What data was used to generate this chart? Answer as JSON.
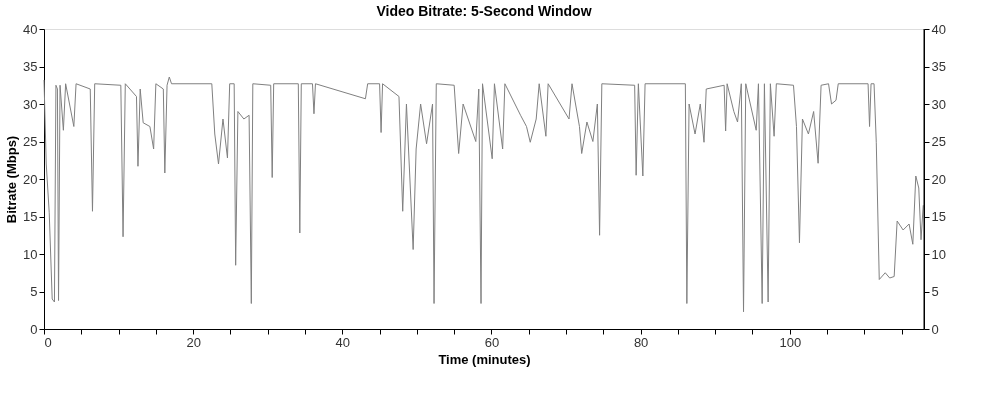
{
  "chart_data": {
    "type": "line",
    "title": "Video Bitrate: 5-Second Window",
    "xlabel": "Time (minutes)",
    "ylabel": "Bitrate (Mbps)",
    "xlim": [
      0,
      118
    ],
    "ylim": [
      0,
      40
    ],
    "y2lim": [
      0,
      40
    ],
    "xticks": [
      0,
      {
        "value": 5,
        "label": null
      },
      {
        "value": 10,
        "label": null
      },
      {
        "value": 15,
        "label": null
      },
      20,
      {
        "value": 25,
        "label": null
      },
      {
        "value": 30,
        "label": null
      },
      {
        "value": 35,
        "label": null
      },
      40,
      {
        "value": 45,
        "label": null
      },
      {
        "value": 50,
        "label": null
      },
      {
        "value": 55,
        "label": null
      },
      60,
      {
        "value": 65,
        "label": null
      },
      {
        "value": 70,
        "label": null
      },
      {
        "value": 75,
        "label": null
      },
      80,
      {
        "value": 85,
        "label": null
      },
      {
        "value": 90,
        "label": null
      },
      {
        "value": 95,
        "label": null
      },
      100,
      {
        "value": 105,
        "label": null
      },
      {
        "value": 110,
        "label": null
      },
      {
        "value": 115,
        "label": null
      }
    ],
    "yticks": [
      0,
      5,
      10,
      15,
      20,
      25,
      30,
      35,
      40
    ],
    "y2ticks": [
      0,
      5,
      10,
      15,
      20,
      25,
      30,
      35,
      40
    ],
    "grid": false,
    "marker": "none",
    "line_style": "solid",
    "series": [
      {
        "color": "#808080",
        "x": [
          0,
          0.3,
          0.7,
          1.1,
          1.4,
          1.6,
          1.8,
          1.95,
          2.15,
          2.6,
          2.9,
          4.0,
          4.3,
          6.2,
          6.5,
          6.8,
          10.3,
          10.6,
          10.9,
          12.4,
          12.6,
          12.9,
          13.3,
          14.2,
          14.7,
          15.0,
          16.0,
          16.2,
          16.5,
          16.8,
          17.1,
          22.5,
          22.9,
          23.4,
          24.0,
          24.6,
          24.9,
          25.5,
          25.7,
          26.0,
          26.8,
          27.5,
          27.8,
          28.0,
          30.4,
          30.6,
          30.8,
          34.1,
          34.3,
          34.5,
          36.0,
          36.2,
          36.4,
          43.1,
          43.4,
          45.0,
          45.2,
          45.4,
          47.6,
          48.1,
          48.6,
          49.5,
          49.9,
          50.5,
          51.3,
          52.1,
          52.3,
          52.6,
          55.0,
          55.6,
          56.2,
          57.9,
          58.3,
          58.6,
          58.8,
          60.1,
          60.4,
          61.5,
          61.8,
          63.9,
          64.7,
          65.2,
          66.0,
          66.4,
          67.3,
          67.6,
          70.4,
          70.8,
          71.8,
          72.1,
          72.8,
          73.6,
          74.2,
          74.5,
          74.8,
          79.2,
          79.4,
          79.7,
          80.3,
          80.6,
          86.0,
          86.2,
          86.5,
          87.3,
          88.0,
          88.5,
          88.8,
          91.2,
          91.4,
          91.6,
          92.5,
          93.0,
          93.5,
          93.8,
          94.1,
          95.5,
          95.8,
          96.3,
          96.6,
          97.1,
          97.4,
          97.9,
          98.2,
          100.5,
          100.9,
          101.3,
          101.7,
          102.5,
          103.2,
          103.8,
          104.2,
          105.2,
          105.6,
          106.2,
          106.5,
          110.5,
          110.7,
          110.9,
          111.3,
          111.6,
          112.0,
          112.8,
          113.4,
          114.0,
          114.4,
          115.2,
          116.0,
          116.5,
          116.9,
          117.3,
          117.6,
          117.9
        ],
        "values": [
          33.2,
          22,
          15.5,
          4,
          3.6,
          32.5,
          32,
          3.8,
          32.5,
          26.5,
          32.7,
          27,
          32.7,
          32,
          15.7,
          32.7,
          32.5,
          12.3,
          32.7,
          31,
          21.7,
          32,
          27.5,
          27,
          24,
          32.7,
          32,
          20.8,
          32.5,
          33.6,
          32.7,
          32.7,
          26,
          22,
          28,
          22.8,
          32.7,
          32.7,
          8.5,
          29,
          28,
          28.5,
          3.4,
          32.7,
          32.5,
          20.2,
          32.7,
          32.7,
          12.8,
          32.7,
          32.7,
          28.7,
          32.7,
          30.7,
          32.7,
          32.7,
          26.2,
          32.7,
          31,
          15.7,
          30,
          10.6,
          24,
          30,
          24.7,
          30,
          3.4,
          32.7,
          32.5,
          23.4,
          30,
          25,
          32,
          3.4,
          32.7,
          22.7,
          32.7,
          24,
          32.7,
          28.5,
          27,
          24.9,
          28,
          32.7,
          25.7,
          32.7,
          28,
          32.7,
          27,
          23.4,
          27.6,
          25,
          30,
          12.5,
          32.7,
          32.5,
          20.5,
          32.7,
          20.4,
          32.7,
          32.7,
          3.4,
          30,
          26,
          30,
          24.9,
          32,
          32.5,
          26.4,
          32.7,
          29,
          27.6,
          32.7,
          2.3,
          32.7,
          26.5,
          32.7,
          3.4,
          32.7,
          3.6,
          32.7,
          25.7,
          32.7,
          32.5,
          27,
          11.5,
          28,
          26,
          29,
          22.1,
          32.5,
          32.7,
          30,
          30.5,
          32.7,
          32.7,
          27,
          32.7,
          32.7,
          24.9,
          6.6,
          7.5,
          6.8,
          7,
          14.4,
          13.2,
          14,
          11.3,
          20.4,
          18.8,
          11.9,
          16.5
        ]
      }
    ]
  }
}
